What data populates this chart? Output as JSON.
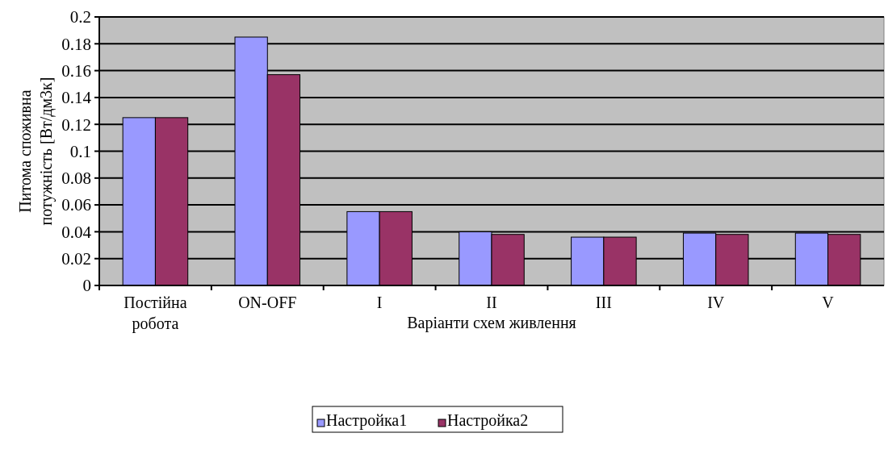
{
  "chart_data": {
    "type": "bar",
    "xlabel": "Варіанти схем живлення",
    "ylabel": "Питома споживна потужність [Вт/дм3к]",
    "categories": [
      "Постійна робота",
      "ON-OFF",
      "I",
      "II",
      "III",
      "IV",
      "V"
    ],
    "series": [
      {
        "name": "Настройка1",
        "color": "#9999ff",
        "values": [
          0.125,
          0.185,
          0.055,
          0.04,
          0.036,
          0.039,
          0.039
        ]
      },
      {
        "name": "Настройка2",
        "color": "#993366",
        "values": [
          0.125,
          0.157,
          0.055,
          0.038,
          0.036,
          0.038,
          0.038
        ]
      }
    ],
    "ylim": [
      0,
      0.2
    ],
    "yticks": [
      0,
      0.02,
      0.04,
      0.06,
      0.08,
      0.1,
      0.12,
      0.14,
      0.16,
      0.18,
      0.2
    ],
    "grid": "y",
    "legend": "bottom"
  }
}
